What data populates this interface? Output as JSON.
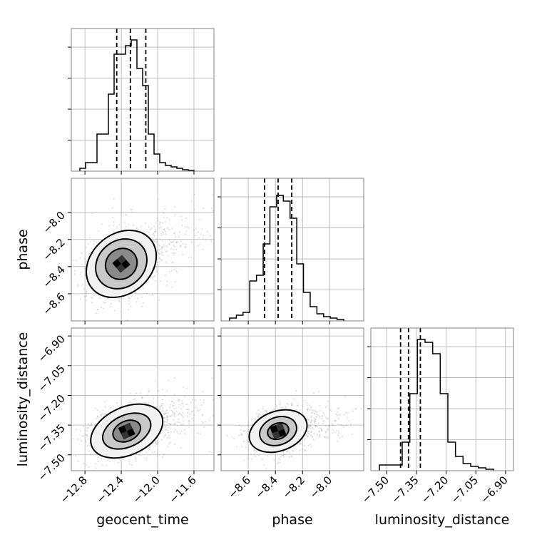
{
  "chart_data": {
    "type": "corner",
    "parameters": [
      {
        "name": "geocent_time",
        "label": "geocent_time",
        "range": [
          -12.95,
          -11.38
        ],
        "ticks": [
          -12.8,
          -12.4,
          -12.0,
          -11.6
        ],
        "tick_labels": [
          "−12.8",
          "−12.4",
          "−12.0",
          "−11.6"
        ],
        "quantiles": [
          -12.45,
          -12.3,
          -12.13
        ],
        "histogram": [
          0.02,
          0.06,
          0.06,
          0.26,
          0.26,
          0.54,
          0.82,
          0.82,
          0.88,
          0.92,
          0.72,
          0.6,
          0.26,
          0.12,
          0.06,
          0.04,
          0.03,
          0.02,
          0.01,
          0.005
        ]
      },
      {
        "name": "phase",
        "label": "phase",
        "range": [
          -8.8,
          -7.75
        ],
        "ticks": [
          -8.6,
          -8.4,
          -8.2,
          -8.0
        ],
        "tick_labels": [
          "−8.6",
          "−8.4",
          "−8.2",
          "−8.0"
        ],
        "quantiles": [
          -8.48,
          -8.38,
          -8.28
        ],
        "histogram": [
          0.02,
          0.04,
          0.06,
          0.28,
          0.32,
          0.54,
          0.8,
          0.88,
          0.84,
          0.72,
          0.4,
          0.2,
          0.1,
          0.05,
          0.03,
          0.02,
          0.01
        ]
      },
      {
        "name": "luminosity_distance",
        "label": "luminosity_distance",
        "range": [
          -7.58,
          -6.86
        ],
        "ticks": [
          -7.5,
          -7.35,
          -7.2,
          -7.05,
          -6.9
        ],
        "tick_labels": [
          "−7.50",
          "−7.35",
          "−7.20",
          "−7.05",
          "−6.90"
        ],
        "quantiles": [
          -7.43,
          -7.39,
          -7.33
        ],
        "histogram": [
          0.04,
          0.04,
          0.04,
          0.2,
          0.54,
          0.92,
          0.9,
          0.82,
          0.54,
          0.2,
          0.1,
          0.05,
          0.03,
          0.02,
          0.01
        ]
      }
    ],
    "contours": {
      "geocent_time_vs_phase": {
        "center": [
          -12.4,
          -8.38
        ],
        "levels": [
          {
            "rx": 0.18,
            "ry": 0.11,
            "angle": 40
          },
          {
            "rx": 0.3,
            "ry": 0.17,
            "angle": 40
          },
          {
            "rx": 0.42,
            "ry": 0.22,
            "angle": 40
          }
        ]
      },
      "geocent_time_vs_luminosity_distance": {
        "center": [
          -12.34,
          -7.38
        ],
        "levels": [
          {
            "rx": 0.16,
            "ry": 0.05,
            "angle": 25
          },
          {
            "rx": 0.28,
            "ry": 0.08,
            "angle": 25
          },
          {
            "rx": 0.42,
            "ry": 0.12,
            "angle": 25
          }
        ]
      },
      "phase_vs_luminosity_distance": {
        "center": [
          -8.38,
          -7.38
        ],
        "levels": [
          {
            "rx": 0.08,
            "ry": 0.04,
            "angle": 20
          },
          {
            "rx": 0.14,
            "ry": 0.07,
            "angle": 20
          },
          {
            "rx": 0.22,
            "ry": 0.1,
            "angle": 20
          }
        ]
      }
    },
    "grid": true
  }
}
